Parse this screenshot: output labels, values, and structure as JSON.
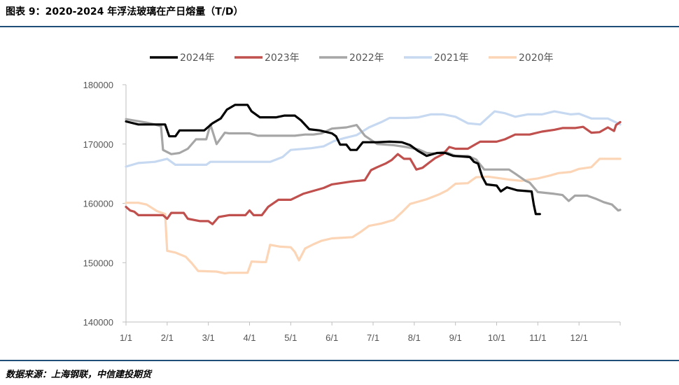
{
  "header": {
    "title": "图表 9：2020-2024 年浮法玻璃在产日熔量（T/D）"
  },
  "footer": {
    "source": "数据来源：上海钢联，中信建投期货"
  },
  "chart_data": {
    "type": "line",
    "title": "图表 9：2020-2024 年浮法玻璃在产日熔量（T/D）",
    "ylabel": "",
    "xlabel": "",
    "ylim": [
      140000,
      180000
    ],
    "yticks": [
      140000,
      150000,
      160000,
      170000,
      180000
    ],
    "xticks": [
      "1/1",
      "2/1",
      "3/1",
      "4/1",
      "5/1",
      "6/1",
      "7/1",
      "8/1",
      "9/1",
      "10/1",
      "11/1",
      "12/1"
    ],
    "xlim_month": [
      1,
      13
    ],
    "legend_position": "top",
    "series": [
      {
        "name": "2024年",
        "color": "#000000",
        "points": [
          [
            1.0,
            173800
          ],
          [
            1.3,
            173300
          ],
          [
            1.65,
            173300
          ],
          [
            1.95,
            173300
          ],
          [
            2.05,
            171300
          ],
          [
            2.2,
            171300
          ],
          [
            2.3,
            172300
          ],
          [
            2.9,
            172300
          ],
          [
            3.1,
            173500
          ],
          [
            3.3,
            174300
          ],
          [
            3.45,
            175800
          ],
          [
            3.65,
            176600
          ],
          [
            3.95,
            176600
          ],
          [
            4.05,
            175500
          ],
          [
            4.25,
            174500
          ],
          [
            4.65,
            174500
          ],
          [
            4.85,
            174800
          ],
          [
            5.1,
            174800
          ],
          [
            5.25,
            174000
          ],
          [
            5.45,
            172500
          ],
          [
            5.7,
            172300
          ],
          [
            6.0,
            171800
          ],
          [
            6.1,
            171300
          ],
          [
            6.2,
            169900
          ],
          [
            6.35,
            169900
          ],
          [
            6.45,
            169000
          ],
          [
            6.6,
            169000
          ],
          [
            6.75,
            170300
          ],
          [
            7.1,
            170300
          ],
          [
            7.4,
            170400
          ],
          [
            7.7,
            170300
          ],
          [
            7.9,
            169800
          ],
          [
            8.1,
            168800
          ],
          [
            8.3,
            168000
          ],
          [
            8.55,
            168500
          ],
          [
            8.75,
            168500
          ],
          [
            8.95,
            168000
          ],
          [
            9.35,
            167800
          ],
          [
            9.45,
            167000
          ],
          [
            9.55,
            166700
          ],
          [
            9.65,
            164500
          ],
          [
            9.75,
            163200
          ],
          [
            10.0,
            163000
          ],
          [
            10.1,
            162000
          ],
          [
            10.25,
            162700
          ],
          [
            10.5,
            162200
          ],
          [
            10.85,
            162000
          ],
          [
            10.9,
            159800
          ],
          [
            10.95,
            158200
          ],
          [
            11.05,
            158200
          ]
        ]
      },
      {
        "name": "2023年",
        "color": "#c0504d",
        "points": [
          [
            1.0,
            159400
          ],
          [
            1.1,
            158800
          ],
          [
            1.2,
            158600
          ],
          [
            1.3,
            158000
          ],
          [
            1.9,
            158000
          ],
          [
            2.0,
            157400
          ],
          [
            2.1,
            158400
          ],
          [
            2.4,
            158400
          ],
          [
            2.5,
            157400
          ],
          [
            2.8,
            157000
          ],
          [
            3.0,
            157000
          ],
          [
            3.1,
            156500
          ],
          [
            3.25,
            157700
          ],
          [
            3.5,
            158000
          ],
          [
            3.9,
            158000
          ],
          [
            4.0,
            158800
          ],
          [
            4.1,
            158000
          ],
          [
            4.3,
            158000
          ],
          [
            4.45,
            159400
          ],
          [
            4.7,
            160600
          ],
          [
            5.0,
            160600
          ],
          [
            5.3,
            161600
          ],
          [
            5.5,
            162000
          ],
          [
            5.8,
            162600
          ],
          [
            6.0,
            163200
          ],
          [
            6.3,
            163500
          ],
          [
            6.5,
            163700
          ],
          [
            6.8,
            163900
          ],
          [
            6.95,
            165600
          ],
          [
            7.1,
            166100
          ],
          [
            7.3,
            166700
          ],
          [
            7.45,
            167300
          ],
          [
            7.6,
            168300
          ],
          [
            7.75,
            167500
          ],
          [
            7.9,
            167500
          ],
          [
            8.05,
            165700
          ],
          [
            8.2,
            166000
          ],
          [
            8.35,
            166800
          ],
          [
            8.5,
            167600
          ],
          [
            8.7,
            168300
          ],
          [
            8.85,
            169500
          ],
          [
            9.0,
            169200
          ],
          [
            9.3,
            169200
          ],
          [
            9.45,
            169800
          ],
          [
            9.6,
            170400
          ],
          [
            10.0,
            170400
          ],
          [
            10.2,
            170800
          ],
          [
            10.45,
            171600
          ],
          [
            10.8,
            171600
          ],
          [
            11.1,
            172100
          ],
          [
            11.4,
            172400
          ],
          [
            11.6,
            172700
          ],
          [
            11.9,
            172700
          ],
          [
            12.1,
            172900
          ],
          [
            12.3,
            171900
          ],
          [
            12.5,
            172000
          ],
          [
            12.7,
            172800
          ],
          [
            12.85,
            172200
          ],
          [
            12.9,
            173200
          ],
          [
            13.0,
            173700
          ]
        ]
      },
      {
        "name": "2022年",
        "color": "#a6a6a6",
        "points": [
          [
            1.0,
            174200
          ],
          [
            1.5,
            173600
          ],
          [
            1.7,
            173300
          ],
          [
            1.85,
            173000
          ],
          [
            1.9,
            169000
          ],
          [
            2.1,
            168300
          ],
          [
            2.3,
            168500
          ],
          [
            2.5,
            169200
          ],
          [
            2.7,
            170800
          ],
          [
            2.95,
            170800
          ],
          [
            3.05,
            173300
          ],
          [
            3.2,
            170000
          ],
          [
            3.4,
            171900
          ],
          [
            3.5,
            171800
          ],
          [
            4.0,
            171800
          ],
          [
            4.2,
            171400
          ],
          [
            4.7,
            171400
          ],
          [
            5.1,
            171400
          ],
          [
            5.35,
            171600
          ],
          [
            5.55,
            171600
          ],
          [
            5.75,
            171800
          ],
          [
            6.0,
            172600
          ],
          [
            6.35,
            172800
          ],
          [
            6.6,
            173200
          ],
          [
            6.8,
            171400
          ],
          [
            7.1,
            170000
          ],
          [
            7.5,
            169800
          ],
          [
            7.8,
            169500
          ],
          [
            8.1,
            169100
          ],
          [
            8.3,
            168500
          ],
          [
            8.5,
            168400
          ],
          [
            8.75,
            168700
          ],
          [
            9.0,
            168000
          ],
          [
            9.3,
            168000
          ],
          [
            9.5,
            167400
          ],
          [
            9.7,
            165700
          ],
          [
            10.0,
            165700
          ],
          [
            10.3,
            165700
          ],
          [
            10.45,
            165000
          ],
          [
            10.7,
            163800
          ],
          [
            10.8,
            163500
          ],
          [
            11.0,
            161900
          ],
          [
            11.4,
            161600
          ],
          [
            11.6,
            161400
          ],
          [
            11.75,
            160400
          ],
          [
            11.9,
            161300
          ],
          [
            12.2,
            161300
          ],
          [
            12.4,
            160800
          ],
          [
            12.6,
            160200
          ],
          [
            12.8,
            159800
          ],
          [
            12.95,
            158800
          ],
          [
            13.0,
            158900
          ]
        ]
      },
      {
        "name": "2021年",
        "color": "#c6d9f1",
        "points": [
          [
            1.0,
            166200
          ],
          [
            1.3,
            166800
          ],
          [
            1.7,
            167000
          ],
          [
            2.0,
            167500
          ],
          [
            2.2,
            166500
          ],
          [
            2.5,
            166500
          ],
          [
            2.95,
            166500
          ],
          [
            3.05,
            167000
          ],
          [
            3.5,
            167000
          ],
          [
            4.2,
            167000
          ],
          [
            4.5,
            167000
          ],
          [
            4.8,
            167800
          ],
          [
            5.0,
            169000
          ],
          [
            5.5,
            169300
          ],
          [
            5.8,
            169600
          ],
          [
            6.05,
            170500
          ],
          [
            6.3,
            171000
          ],
          [
            6.6,
            171500
          ],
          [
            6.9,
            172800
          ],
          [
            7.2,
            173700
          ],
          [
            7.4,
            174400
          ],
          [
            7.8,
            174400
          ],
          [
            8.1,
            174500
          ],
          [
            8.4,
            175000
          ],
          [
            8.7,
            175000
          ],
          [
            9.0,
            174600
          ],
          [
            9.3,
            173500
          ],
          [
            9.6,
            173300
          ],
          [
            9.95,
            175500
          ],
          [
            10.2,
            175200
          ],
          [
            10.45,
            174600
          ],
          [
            10.75,
            175000
          ],
          [
            11.1,
            175000
          ],
          [
            11.4,
            175500
          ],
          [
            11.8,
            175000
          ],
          [
            12.0,
            175100
          ],
          [
            12.3,
            174300
          ],
          [
            12.7,
            174300
          ],
          [
            13.0,
            173300
          ]
        ]
      },
      {
        "name": "2020年",
        "color": "#fbd5b5",
        "points": [
          [
            1.0,
            160100
          ],
          [
            1.3,
            160100
          ],
          [
            1.5,
            159800
          ],
          [
            1.75,
            158700
          ],
          [
            1.95,
            158200
          ],
          [
            2.0,
            152000
          ],
          [
            2.2,
            151700
          ],
          [
            2.45,
            151000
          ],
          [
            2.6,
            149900
          ],
          [
            2.75,
            148600
          ],
          [
            3.2,
            148500
          ],
          [
            3.4,
            148200
          ],
          [
            3.5,
            148300
          ],
          [
            3.95,
            148300
          ],
          [
            4.05,
            150200
          ],
          [
            4.3,
            150100
          ],
          [
            4.4,
            150100
          ],
          [
            4.5,
            153000
          ],
          [
            4.75,
            152700
          ],
          [
            5.0,
            152600
          ],
          [
            5.1,
            151800
          ],
          [
            5.2,
            150400
          ],
          [
            5.35,
            152400
          ],
          [
            5.55,
            153100
          ],
          [
            5.75,
            153700
          ],
          [
            6.0,
            154100
          ],
          [
            6.5,
            154300
          ],
          [
            6.7,
            155200
          ],
          [
            6.9,
            156200
          ],
          [
            7.2,
            156600
          ],
          [
            7.5,
            157200
          ],
          [
            7.7,
            158500
          ],
          [
            7.9,
            159900
          ],
          [
            8.1,
            160300
          ],
          [
            8.3,
            160700
          ],
          [
            8.6,
            161500
          ],
          [
            8.8,
            162200
          ],
          [
            9.0,
            163300
          ],
          [
            9.3,
            163400
          ],
          [
            9.5,
            164400
          ],
          [
            9.8,
            164500
          ],
          [
            10.0,
            164300
          ],
          [
            10.3,
            164000
          ],
          [
            10.6,
            163800
          ],
          [
            11.0,
            164200
          ],
          [
            11.3,
            164700
          ],
          [
            11.5,
            165100
          ],
          [
            11.8,
            165300
          ],
          [
            12.0,
            165800
          ],
          [
            12.3,
            166100
          ],
          [
            12.5,
            167500
          ],
          [
            12.7,
            167500
          ],
          [
            13.0,
            167500
          ]
        ]
      }
    ]
  }
}
